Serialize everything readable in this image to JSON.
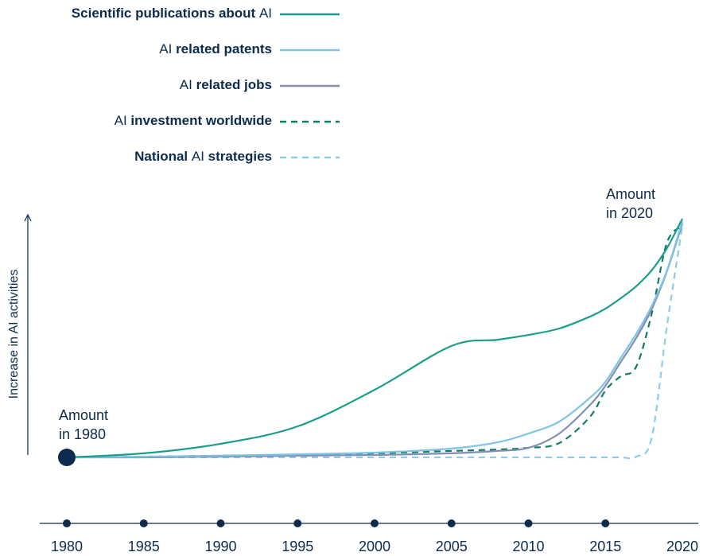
{
  "chart_data": {
    "type": "line",
    "y_label": "Increase in AI activities",
    "annotations": [
      [
        "Amount",
        "in 1980"
      ],
      [
        "Amount",
        "in 2020"
      ]
    ],
    "x": [
      1980,
      1985,
      1990,
      1995,
      2000,
      2005,
      2008,
      2010,
      2012,
      2014,
      2015,
      2016,
      2017,
      2018,
      2019,
      2020
    ],
    "xlim": [
      1980,
      2020
    ],
    "xticks": [
      1980,
      1985,
      1990,
      1995,
      2000,
      2005,
      2010,
      2015,
      2020
    ],
    "ylim": [
      0,
      100
    ],
    "series": [
      {
        "name": "Scientific publications about AI",
        "color": "#1a9e8a",
        "dashed": false,
        "values": [
          0,
          1.7,
          5.7,
          13,
          28.3,
          46.7,
          49.3,
          51.3,
          54,
          59,
          62.3,
          66.7,
          71.7,
          78.3,
          87.7,
          100
        ]
      },
      {
        "name": "AI related patents",
        "color": "#7ec3e6",
        "dashed": false,
        "values": [
          0,
          0.3,
          0.7,
          1.3,
          2,
          3.7,
          6.3,
          10,
          15,
          25,
          31.7,
          41.7,
          51.7,
          63.3,
          78.3,
          99
        ]
      },
      {
        "name": "AI related jobs",
        "color": "#8190b0",
        "dashed": false,
        "values": [
          0,
          0,
          0.3,
          0.7,
          1,
          1.7,
          2.7,
          4,
          10,
          22,
          30,
          40,
          50,
          62,
          78,
          98
        ]
      },
      {
        "name": "AI investment worldwide",
        "color": "#127a6a",
        "dashed": true,
        "values": [
          0,
          0.3,
          0.7,
          1,
          1.7,
          2.7,
          3.3,
          4,
          6,
          17,
          28,
          34,
          38,
          60,
          90,
          97
        ]
      },
      {
        "name": "National AI strategies",
        "color": "#8ccbe9",
        "dashed": true,
        "values": [
          0,
          0,
          0,
          0,
          0,
          0,
          0,
          0,
          0,
          0,
          0,
          0,
          0.3,
          8,
          55,
          97
        ]
      }
    ]
  }
}
